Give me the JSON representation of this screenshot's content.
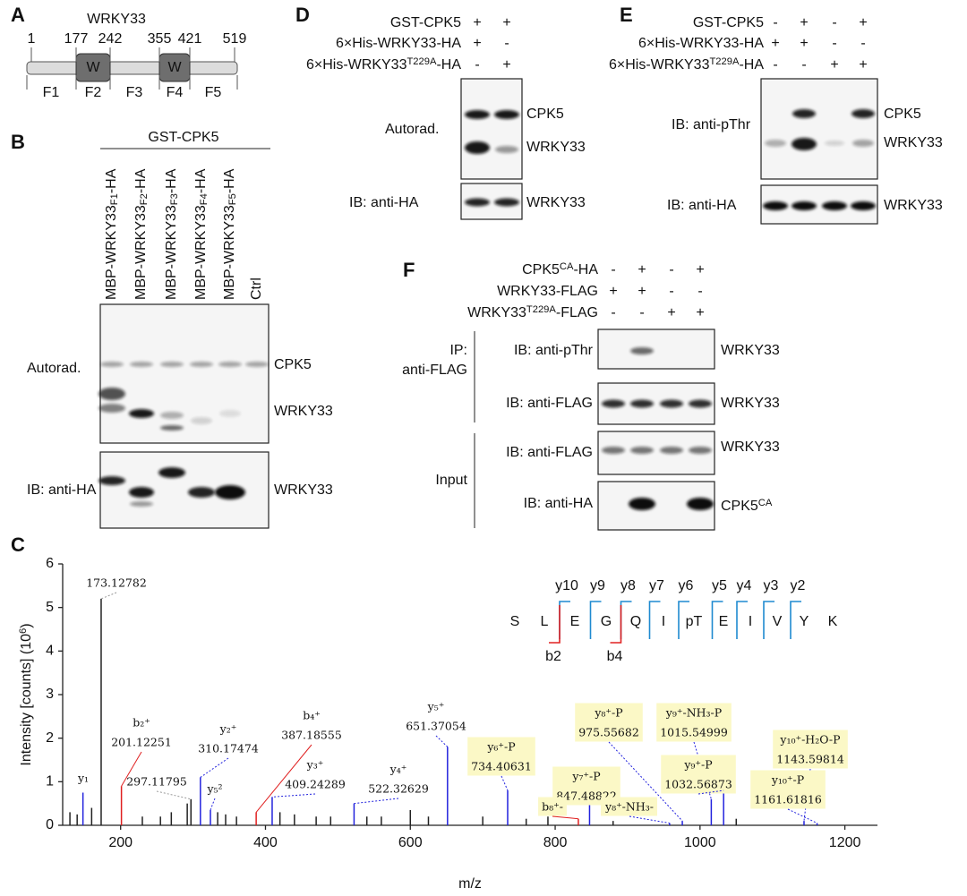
{
  "panel_a": {
    "letter": "A",
    "protein": "WRKY33",
    "positions": [
      1,
      177,
      242,
      355,
      421,
      519
    ],
    "domains": [
      "W",
      "W"
    ],
    "fragments": [
      "F1",
      "F2",
      "F3",
      "F4",
      "F5"
    ]
  },
  "panel_b": {
    "letter": "B",
    "treatment": "GST-CPK5",
    "lanes": [
      {
        "text": "MBP-WRKY33",
        "sub": "F1",
        "tail": "-HA"
      },
      {
        "text": "MBP-WRKY33",
        "sub": "F2",
        "tail": "-HA"
      },
      {
        "text": "MBP-WRKY33",
        "sub": "F3",
        "tail": "-HA"
      },
      {
        "text": "MBP-WRKY33",
        "sub": "F4",
        "tail": "-HA"
      },
      {
        "text": "MBP-WRKY33",
        "sub": "F5",
        "tail": "-HA"
      },
      "Ctrl"
    ],
    "rows": [
      "Autorad.",
      "IB: anti-HA"
    ],
    "bands": [
      "CPK5",
      "WRKY33",
      "WRKY33"
    ]
  },
  "panel_d": {
    "letter": "D",
    "conditions": [
      {
        "label": "GST-CPK5",
        "signs": [
          "+",
          "+"
        ]
      },
      {
        "label": "6×His-WRKY33-HA",
        "signs": [
          "+",
          "-"
        ]
      },
      {
        "label": {
          "text": "6×His-WRKY33",
          "sup": "T229A",
          "tail": "-HA"
        },
        "signs": [
          "-",
          "+"
        ]
      }
    ],
    "rows": [
      "Autorad.",
      "IB: anti-HA"
    ],
    "bands": [
      "CPK5",
      "WRKY33",
      "WRKY33"
    ]
  },
  "panel_e": {
    "letter": "E",
    "conditions": [
      {
        "label": "GST-CPK5",
        "signs": [
          "-",
          "+",
          "-",
          "+"
        ]
      },
      {
        "label": "6×His-WRKY33-HA",
        "signs": [
          "+",
          "+",
          "-",
          "-"
        ]
      },
      {
        "label": {
          "text": "6×His-WRKY33",
          "sup": "T229A",
          "tail": "-HA"
        },
        "signs": [
          "-",
          "-",
          "+",
          "+"
        ]
      }
    ],
    "rows": [
      "IB: anti-pThr",
      "IB: anti-HA"
    ],
    "bands": [
      "CPK5",
      "WRKY33",
      "WRKY33"
    ]
  },
  "panel_f": {
    "letter": "F",
    "conditions": [
      {
        "label": {
          "text": "CPK5",
          "sup": "CA",
          "tail": "-HA"
        },
        "signs": [
          "-",
          "+",
          "-",
          "+"
        ]
      },
      {
        "label": "WRKY33-FLAG",
        "signs": [
          "+",
          "+",
          "-",
          "-"
        ]
      },
      {
        "label": {
          "text": "WRKY33",
          "sup": "T229A",
          "tail": "-FLAG"
        },
        "signs": [
          "-",
          "-",
          "+",
          "+"
        ]
      }
    ],
    "groups": [
      {
        "label": [
          "IP:",
          "anti-FLAG"
        ],
        "rows": [
          "IB: anti-pThr",
          "IB: anti-FLAG"
        ]
      },
      {
        "label": [
          "Input"
        ],
        "rows": [
          "IB: anti-FLAG",
          "IB: anti-HA"
        ]
      }
    ],
    "bands": [
      "WRKY33",
      "WRKY33",
      "WRKY33",
      {
        "text": "CPK5",
        "sup": "CA"
      }
    ]
  },
  "chart_data": {
    "type": "spectrum",
    "letter": "C",
    "xlabel": "m/z",
    "ylabel": {
      "text": "Intensity [counts] (10",
      "sup": "6",
      "tail": ")"
    },
    "xlim": [
      120,
      1245
    ],
    "ylim": [
      0,
      6
    ],
    "xticks": [
      200,
      400,
      600,
      800,
      1000,
      1200
    ],
    "yticks": [
      0,
      1,
      2,
      3,
      4,
      5,
      6
    ],
    "peaks": [
      {
        "x": 148,
        "y": 0.75,
        "color": "#2222dd",
        "ion": "y₁"
      },
      {
        "x": 173.12782,
        "y": 5.2,
        "color": "#222222",
        "mz": "173.12782",
        "label_color": "#9a9a9a"
      },
      {
        "x": 201.12251,
        "y": 0.9,
        "color": "#e02020",
        "ion": "b₂⁺",
        "mz": "201.12251"
      },
      {
        "x": 297.11795,
        "y": 0.6,
        "color": "#222222",
        "mz": "297.11795",
        "label_color": "#9a9a9a"
      },
      {
        "x": 310.17474,
        "y": 1.1,
        "color": "#2222dd",
        "ion": "y₂⁺",
        "mz": "310.17474"
      },
      {
        "x": 324,
        "y": 0.35,
        "color": "#2222dd",
        "ion": "y₅²"
      },
      {
        "x": 387.18555,
        "y": 0.3,
        "color": "#e02020",
        "ion": "b₄⁺",
        "mz": "387.18555"
      },
      {
        "x": 409.24289,
        "y": 0.65,
        "color": "#2222dd",
        "ion": "y₃⁺",
        "mz": "409.24289"
      },
      {
        "x": 522.32629,
        "y": 0.5,
        "color": "#2222dd",
        "ion": "y₄⁺",
        "mz": "522.32629"
      },
      {
        "x": 651.37054,
        "y": 1.8,
        "color": "#2222dd",
        "ion": "y₅⁺",
        "mz": "651.37054"
      },
      {
        "x": 734.40631,
        "y": 0.8,
        "color": "#2222dd",
        "ion": "y₆⁺-P",
        "mz": "734.40631",
        "highlight": true
      },
      {
        "x": 847.48822,
        "y": 0.6,
        "color": "#2222dd",
        "ion": "y₇⁺-P",
        "mz": "847.48822",
        "highlight": true
      },
      {
        "x": 832,
        "y": 0.15,
        "color": "#e02020",
        "ion": "b₈⁺-",
        "highlight": true
      },
      {
        "x": 958,
        "y": 0.05,
        "color": "#2222dd",
        "ion": "y₈⁺-NH₃-",
        "highlight": true
      },
      {
        "x": 975.55682,
        "y": 0.1,
        "color": "#2222dd",
        "ion": "y₈⁺-P",
        "mz": "975.55682",
        "highlight": true
      },
      {
        "x": 1015.54999,
        "y": 0.6,
        "color": "#2222dd",
        "ion": "y₉⁺-NH₃-P",
        "mz": "1015.54999",
        "highlight": true
      },
      {
        "x": 1032.56873,
        "y": 0.8,
        "color": "#2222dd",
        "ion": "y₉⁺-P",
        "mz": "1032.56873",
        "highlight": true
      },
      {
        "x": 1143.59814,
        "y": 0.1,
        "color": "#2222dd",
        "ion": "y₁₀⁺-H₂O-P",
        "mz": "1143.59814",
        "highlight": true
      },
      {
        "x": 1161.61816,
        "y": 0.05,
        "color": "#2222dd",
        "ion": "y₁₀⁺-P",
        "mz": "1161.61816",
        "highlight": true
      },
      {
        "x": 130,
        "y": 0.3,
        "color": "#222222"
      },
      {
        "x": 140,
        "y": 0.25,
        "color": "#222222"
      },
      {
        "x": 160,
        "y": 0.4,
        "color": "#222222"
      },
      {
        "x": 230,
        "y": 0.2,
        "color": "#222222"
      },
      {
        "x": 255,
        "y": 0.2,
        "color": "#222222"
      },
      {
        "x": 270,
        "y": 0.3,
        "color": "#222222"
      },
      {
        "x": 292,
        "y": 0.5,
        "color": "#222222"
      },
      {
        "x": 334,
        "y": 0.3,
        "color": "#222222"
      },
      {
        "x": 345,
        "y": 0.25,
        "color": "#222222"
      },
      {
        "x": 360,
        "y": 0.2,
        "color": "#222222"
      },
      {
        "x": 420,
        "y": 0.3,
        "color": "#222222"
      },
      {
        "x": 440,
        "y": 0.25,
        "color": "#222222"
      },
      {
        "x": 470,
        "y": 0.2,
        "color": "#222222"
      },
      {
        "x": 490,
        "y": 0.2,
        "color": "#222222"
      },
      {
        "x": 540,
        "y": 0.2,
        "color": "#222222"
      },
      {
        "x": 560,
        "y": 0.2,
        "color": "#222222"
      },
      {
        "x": 600,
        "y": 0.35,
        "color": "#222222"
      },
      {
        "x": 625,
        "y": 0.2,
        "color": "#222222"
      },
      {
        "x": 700,
        "y": 0.2,
        "color": "#222222"
      },
      {
        "x": 760,
        "y": 0.15,
        "color": "#222222"
      },
      {
        "x": 790,
        "y": 0.2,
        "color": "#222222"
      },
      {
        "x": 880,
        "y": 0.1,
        "color": "#222222"
      },
      {
        "x": 1050,
        "y": 0.15,
        "color": "#222222"
      }
    ],
    "peptide": {
      "residues": [
        "S",
        "L",
        "E",
        "G",
        "Q",
        "I",
        "pT",
        "E",
        "I",
        "V",
        "Y",
        "K"
      ],
      "y_ions": [
        "y10",
        "y9",
        "y8",
        "y7",
        "y6",
        "y5",
        "y4",
        "y3",
        "y2"
      ],
      "b_ions": [
        "b2",
        "b4"
      ],
      "y_color": "#1f8ad0",
      "b_color": "#e02020"
    }
  }
}
